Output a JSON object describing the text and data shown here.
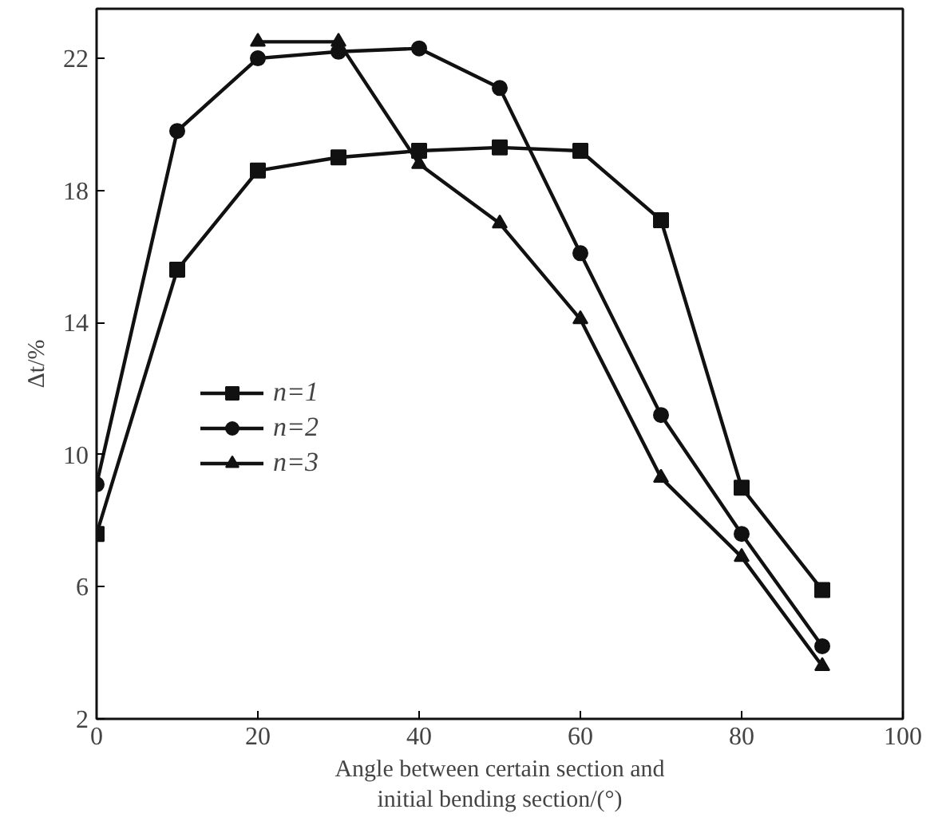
{
  "chart_data": {
    "type": "line",
    "xlabel": "Angle between certain section and\ninitial bending section/(°)",
    "ylabel": "Δt/%",
    "x": [
      0,
      10,
      20,
      30,
      40,
      50,
      60,
      70,
      80,
      90
    ],
    "series": [
      {
        "name": "n=1",
        "color": "#111111",
        "marker": "square",
        "values": [
          7.6,
          15.6,
          18.6,
          19.0,
          19.2,
          19.3,
          19.2,
          17.1,
          9.0,
          5.9
        ]
      },
      {
        "name": "n=2",
        "color": "#111111",
        "marker": "circle",
        "values": [
          9.1,
          19.8,
          22.0,
          22.2,
          22.3,
          21.1,
          16.1,
          11.2,
          7.6,
          4.2
        ]
      },
      {
        "name": "n=3",
        "color": "#111111",
        "marker": "triangle",
        "values": [
          null,
          null,
          22.5,
          22.5,
          18.8,
          17.0,
          14.1,
          9.3,
          6.9,
          3.6
        ]
      }
    ],
    "xlim": [
      0,
      100
    ],
    "ylim": [
      2,
      23.5
    ],
    "xticks": [
      0,
      20,
      40,
      60,
      80,
      100
    ],
    "yticks": [
      2,
      6,
      10,
      14,
      18,
      22
    ],
    "grid": false,
    "legend": "left",
    "line_style": "solid"
  }
}
